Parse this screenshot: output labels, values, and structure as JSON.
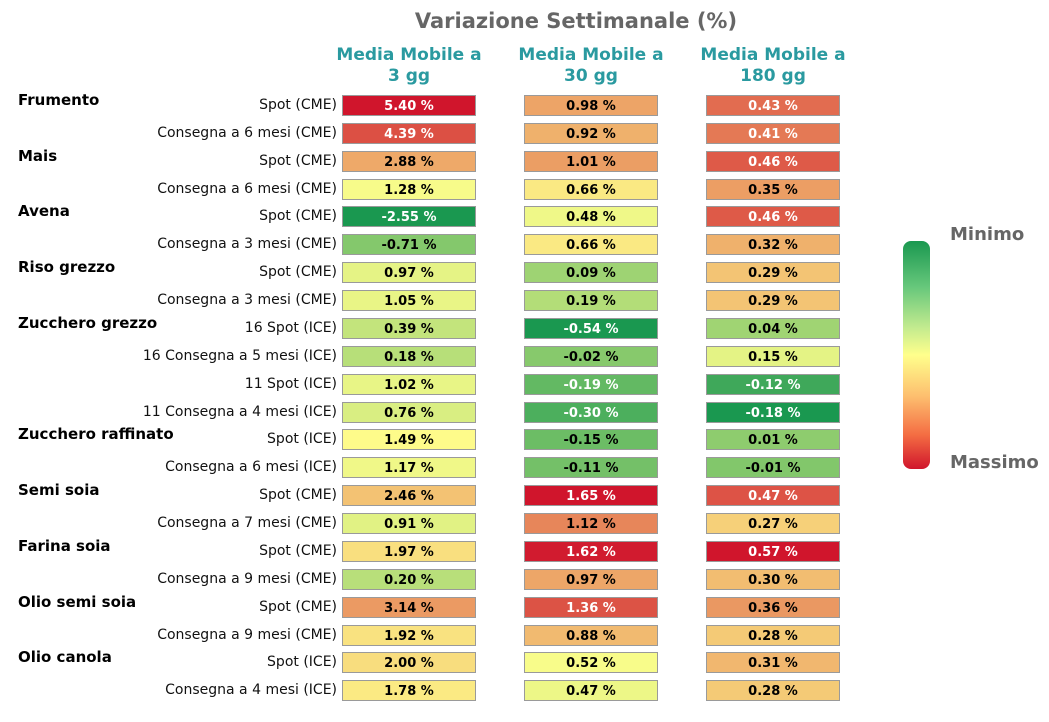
{
  "chart_data": {
    "type": "heatmap",
    "title": "Variazione Settimanale (%)",
    "columns": [
      [
        "Media Mobile a",
        "3 gg"
      ],
      [
        "Media Mobile a",
        "30 gg"
      ],
      [
        "Media Mobile a",
        "180 gg"
      ]
    ],
    "unit": "%",
    "color_scale": {
      "top_label": "Minimo",
      "bottom_label": "Massimo",
      "colors": [
        "#1a9850",
        "#ffff8c",
        "#d0152c"
      ]
    },
    "groups": [
      {
        "name": "Frumento",
        "rows": [
          {
            "label": "Spot (CME)",
            "values": [
              5.4,
              0.98,
              0.43
            ]
          },
          {
            "label": "Consegna a 6 mesi (CME)",
            "values": [
              4.39,
              0.92,
              0.41
            ]
          }
        ]
      },
      {
        "name": "Mais",
        "rows": [
          {
            "label": "Spot (CME)",
            "values": [
              2.88,
              1.01,
              0.46
            ]
          },
          {
            "label": "Consegna a 6 mesi (CME)",
            "values": [
              1.28,
              0.66,
              0.35
            ]
          }
        ]
      },
      {
        "name": "Avena",
        "rows": [
          {
            "label": "Spot (CME)",
            "values": [
              -2.55,
              0.48,
              0.46
            ]
          },
          {
            "label": "Consegna a 3 mesi (CME)",
            "values": [
              -0.71,
              0.66,
              0.32
            ]
          }
        ]
      },
      {
        "name": "Riso grezzo",
        "rows": [
          {
            "label": "Spot (CME)",
            "values": [
              0.97,
              0.09,
              0.29
            ]
          },
          {
            "label": "Consegna a 3 mesi (CME)",
            "values": [
              1.05,
              0.19,
              0.29
            ]
          }
        ]
      },
      {
        "name": "Zucchero grezzo",
        "rows": [
          {
            "label": "16 Spot (ICE)",
            "values": [
              0.39,
              -0.54,
              0.04
            ]
          },
          {
            "label": "16 Consegna a 5 mesi (ICE)",
            "values": [
              0.18,
              -0.02,
              0.15
            ]
          },
          {
            "label": "11 Spot (ICE)",
            "values": [
              1.02,
              -0.19,
              -0.12
            ]
          },
          {
            "label": "11 Consegna a 4 mesi (ICE)",
            "values": [
              0.76,
              -0.3,
              -0.18
            ]
          }
        ]
      },
      {
        "name": "Zucchero raffinato",
        "rows": [
          {
            "label": "Spot (ICE)",
            "values": [
              1.49,
              -0.15,
              0.01
            ]
          },
          {
            "label": "Consegna a 6 mesi (ICE)",
            "values": [
              1.17,
              -0.11,
              -0.01
            ]
          }
        ]
      },
      {
        "name": "Semi soia",
        "rows": [
          {
            "label": "Spot (CME)",
            "values": [
              2.46,
              1.65,
              0.47
            ]
          },
          {
            "label": "Consegna a 7 mesi (CME)",
            "values": [
              0.91,
              1.12,
              0.27
            ]
          }
        ]
      },
      {
        "name": "Farina soia",
        "rows": [
          {
            "label": "Spot (CME)",
            "values": [
              1.97,
              1.62,
              0.57
            ]
          },
          {
            "label": "Consegna a 9 mesi (CME)",
            "values": [
              0.2,
              0.97,
              0.3
            ]
          }
        ]
      },
      {
        "name": "Olio semi soia",
        "rows": [
          {
            "label": "Spot (CME)",
            "values": [
              3.14,
              1.36,
              0.36
            ]
          },
          {
            "label": "Consegna a 9 mesi (CME)",
            "values": [
              1.92,
              0.88,
              0.28
            ]
          }
        ]
      },
      {
        "name": "Olio canola",
        "rows": [
          {
            "label": "Spot (ICE)",
            "values": [
              2.0,
              0.52,
              0.31
            ]
          },
          {
            "label": "Consegna a 4 mesi (ICE)",
            "values": [
              1.78,
              0.47,
              0.28
            ]
          }
        ]
      }
    ]
  }
}
